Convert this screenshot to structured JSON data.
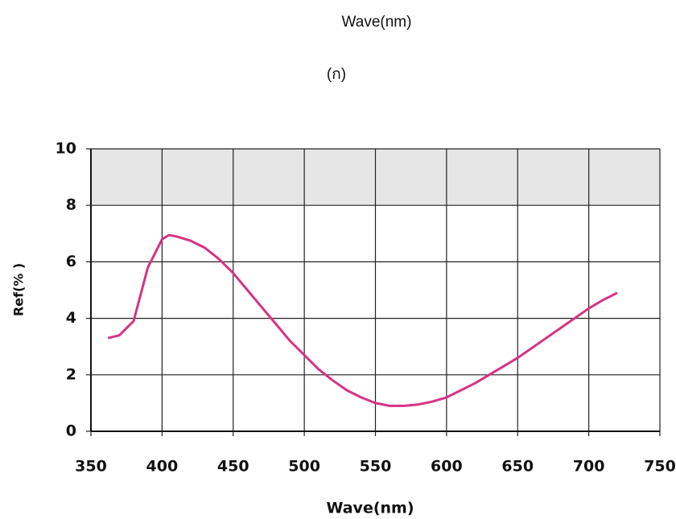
{
  "chart_data": {
    "type": "line",
    "title": "Wave(nm)",
    "subtitle": "(ก)",
    "x_label": "Wave(nm)",
    "y_label": "Ref(% )",
    "x": [
      362,
      370,
      380,
      390,
      400,
      405,
      410,
      420,
      430,
      440,
      450,
      460,
      470,
      480,
      490,
      500,
      510,
      520,
      530,
      540,
      550,
      560,
      570,
      580,
      590,
      600,
      610,
      620,
      630,
      640,
      650,
      660,
      670,
      680,
      690,
      700,
      710,
      720
    ],
    "values": [
      3.3,
      3.4,
      3.9,
      5.8,
      6.8,
      6.95,
      6.9,
      6.75,
      6.5,
      6.1,
      5.6,
      5.0,
      4.4,
      3.8,
      3.2,
      2.7,
      2.2,
      1.8,
      1.45,
      1.2,
      1.0,
      0.9,
      0.9,
      0.95,
      1.05,
      1.2,
      1.45,
      1.7,
      2.0,
      2.3,
      2.6,
      2.95,
      3.3,
      3.65,
      4.0,
      4.35,
      4.65,
      4.9
    ],
    "color": "#d63384",
    "xlim": [
      350,
      750
    ],
    "xticks": [
      350,
      400,
      450,
      500,
      550,
      600,
      650,
      700,
      750
    ],
    "ylim": [
      0,
      10
    ],
    "yticks": [
      0,
      2,
      4,
      6,
      8,
      10
    ],
    "grid": true
  }
}
